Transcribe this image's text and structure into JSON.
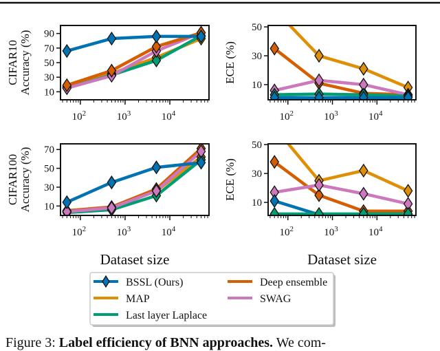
{
  "colors": {
    "BSSL (Ours)": "#0173b2",
    "MAP": "#de8f05",
    "Deep ensemble": "#d55e00",
    "Last layer Laplace": "#029e73",
    "SWAG": "#cc78bc"
  },
  "legend": {
    "items": [
      "BSSL (Ours)",
      "MAP",
      "Last layer Laplace",
      "Deep ensemble",
      "SWAG"
    ]
  },
  "caption": {
    "prefix": "Figure 3: ",
    "bold": "Label efficiency of BNN approaches.",
    "rest": " We com-"
  },
  "chart_data": [
    {
      "type": "line",
      "title": "",
      "row_label": "CIFAR10",
      "ylabel": "Accuracy (%)",
      "xlabel": "",
      "xscale": "log",
      "xticks": [
        "10^2",
        "10^3",
        "10^4"
      ],
      "yticks": [
        10,
        30,
        50,
        70,
        90
      ],
      "ylim": [
        -1,
        101
      ],
      "xlim": [
        36,
        75000
      ],
      "x": [
        50,
        500,
        5000,
        50000
      ],
      "series": [
        {
          "name": "MAP",
          "values": [
            17,
            35,
            57,
            83
          ]
        },
        {
          "name": "Last layer Laplace",
          "values": [
            15,
            33,
            53,
            87
          ]
        },
        {
          "name": "SWAG",
          "values": [
            15,
            32,
            66,
            91
          ]
        },
        {
          "name": "Deep ensemble",
          "values": [
            19,
            39,
            72,
            91
          ]
        },
        {
          "name": "BSSL (Ours)",
          "values": [
            66,
            83,
            86,
            86
          ]
        }
      ]
    },
    {
      "type": "line",
      "title": "",
      "row_label": "",
      "ylabel": "ECE (%)",
      "xlabel": "",
      "xscale": "log",
      "xticks": [
        "10^2",
        "10^3",
        "10^4"
      ],
      "yticks": [
        10,
        30,
        50
      ],
      "ylim": [
        -0.5,
        51
      ],
      "xlim": [
        36,
        75000
      ],
      "x": [
        50,
        500,
        5000,
        50000
      ],
      "series": [
        {
          "name": "MAP",
          "values": [
            62,
            30,
            21,
            8
          ]
        },
        {
          "name": "Deep ensemble",
          "values": [
            35,
            11,
            4,
            3
          ]
        },
        {
          "name": "SWAG",
          "values": [
            6,
            13,
            10,
            3
          ]
        },
        {
          "name": "Last layer Laplace",
          "values": [
            3,
            3.5,
            3,
            2
          ]
        },
        {
          "name": "BSSL (Ours)",
          "values": [
            1,
            1,
            1,
            1
          ]
        }
      ]
    },
    {
      "type": "line",
      "title": "",
      "row_label": "CIFAR100",
      "ylabel": "Accuracy (%)",
      "xlabel": "Dataset size",
      "xscale": "log",
      "xticks": [
        "10^2",
        "10^3",
        "10^4"
      ],
      "yticks": [
        10,
        30,
        50,
        70
      ],
      "ylim": [
        0,
        76
      ],
      "xlim": [
        36,
        75000
      ],
      "x": [
        50,
        500,
        5000,
        50000
      ],
      "series": [
        {
          "name": "MAP",
          "values": [
            4,
            8,
            26,
            62
          ]
        },
        {
          "name": "Last layer Laplace",
          "values": [
            3,
            6,
            21,
            59
          ]
        },
        {
          "name": "Deep ensemble",
          "values": [
            5,
            9,
            28,
            71
          ]
        },
        {
          "name": "SWAG",
          "values": [
            4,
            8,
            26,
            68
          ]
        },
        {
          "name": "BSSL (Ours)",
          "values": [
            14,
            35,
            51,
            56
          ]
        }
      ]
    },
    {
      "type": "line",
      "title": "",
      "row_label": "",
      "ylabel": "ECE (%)",
      "xlabel": "Dataset size",
      "xscale": "log",
      "xticks": [
        "10^2",
        "10^3",
        "10^4"
      ],
      "yticks": [
        10,
        30,
        50
      ],
      "ylim": [
        1,
        50.5
      ],
      "xlim": [
        36,
        75000
      ],
      "x": [
        50,
        500,
        5000,
        50000
      ],
      "series": [
        {
          "name": "MAP",
          "values": [
            62,
            25,
            32,
            18
          ]
        },
        {
          "name": "Deep ensemble",
          "values": [
            38,
            15,
            4,
            4
          ]
        },
        {
          "name": "SWAG",
          "values": [
            17,
            22,
            16,
            9
          ]
        },
        {
          "name": "BSSL (Ours)",
          "values": [
            11,
            1.5,
            1.5,
            1.5
          ]
        },
        {
          "name": "Last layer Laplace",
          "values": [
            2,
            2,
            2,
            2
          ]
        }
      ]
    }
  ]
}
